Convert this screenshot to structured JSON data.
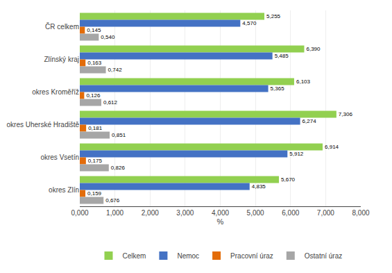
{
  "chart_data": {
    "type": "bar",
    "orientation": "horizontal",
    "categories": [
      "ČR celkem",
      "Zlínský kraj",
      "okres Kroměříž",
      "okres Uherské Hradiště",
      "okres Vsetín",
      "okres Zlín"
    ],
    "series": [
      {
        "name": "Celkem",
        "color": "#92D050",
        "values": [
          5.255,
          6.39,
          6.103,
          7.306,
          6.914,
          5.67
        ],
        "value_labels": [
          "5,255",
          "6,390",
          "6,103",
          "7,306",
          "6,914",
          "5,670"
        ]
      },
      {
        "name": "Nemoc",
        "color": "#4472C4",
        "values": [
          4.57,
          5.485,
          5.365,
          6.274,
          5.912,
          4.835
        ],
        "value_labels": [
          "4,570",
          "5,485",
          "5,365",
          "6,274",
          "5,912",
          "4,835"
        ]
      },
      {
        "name": "Pracovní úraz",
        "color": "#E36C09",
        "values": [
          0.145,
          0.163,
          0.126,
          0.181,
          0.175,
          0.159
        ],
        "value_labels": [
          "0,145",
          "0,163",
          "0,126",
          "0,181",
          "0,175",
          "0,159"
        ]
      },
      {
        "name": "Ostatní úraz",
        "color": "#A6A6A6",
        "values": [
          0.54,
          0.742,
          0.612,
          0.851,
          0.826,
          0.676
        ],
        "value_labels": [
          "0,540",
          "0,742",
          "0,612",
          "0,851",
          "0,826",
          "0,676"
        ]
      }
    ],
    "xlim": [
      0,
      8.0
    ],
    "xticks": [
      {
        "value": 0,
        "label": "0,000"
      },
      {
        "value": 1,
        "label": "1,000"
      },
      {
        "value": 2,
        "label": "2,000"
      },
      {
        "value": 3,
        "label": "3,000"
      },
      {
        "value": 4,
        "label": "4,000"
      },
      {
        "value": 5,
        "label": "5,000"
      },
      {
        "value": 6,
        "label": "6,000"
      },
      {
        "value": 7,
        "label": "7,000"
      },
      {
        "value": 8,
        "label": "8,000"
      }
    ],
    "xlabel": "%",
    "grid": true,
    "legend": "bottom",
    "data_labels": true
  }
}
